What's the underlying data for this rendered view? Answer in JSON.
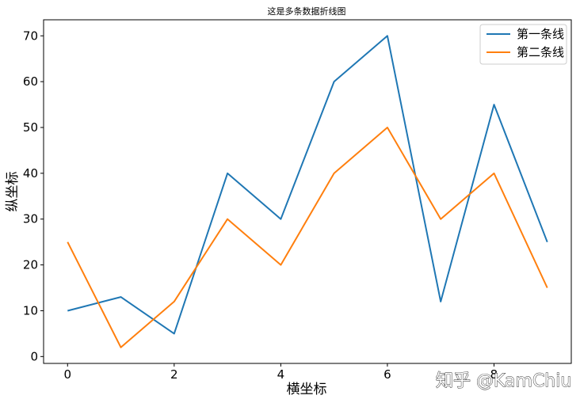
{
  "watermark": "知乎 @KamChiu",
  "chart_data": {
    "type": "line",
    "title": "这是多条数据折线图",
    "xlabel": "横坐标",
    "ylabel": "纵坐标",
    "x": [
      0,
      1,
      2,
      3,
      4,
      5,
      6,
      7,
      8,
      9
    ],
    "xlim": [
      -0.45,
      9.45
    ],
    "ylim": [
      -1.5,
      73.5
    ],
    "xticks": [
      0,
      2,
      4,
      6,
      8
    ],
    "yticks": [
      0,
      10,
      20,
      30,
      40,
      50,
      60,
      70
    ],
    "grid": false,
    "legend_position": "top-right",
    "series": [
      {
        "name": "第一条线",
        "color": "#1f77b4",
        "values": [
          10,
          13,
          5,
          40,
          30,
          60,
          70,
          12,
          55,
          25
        ]
      },
      {
        "name": "第二条线",
        "color": "#ff7f0e",
        "values": [
          25,
          2,
          12,
          30,
          20,
          40,
          50,
          30,
          40,
          15
        ]
      }
    ]
  }
}
